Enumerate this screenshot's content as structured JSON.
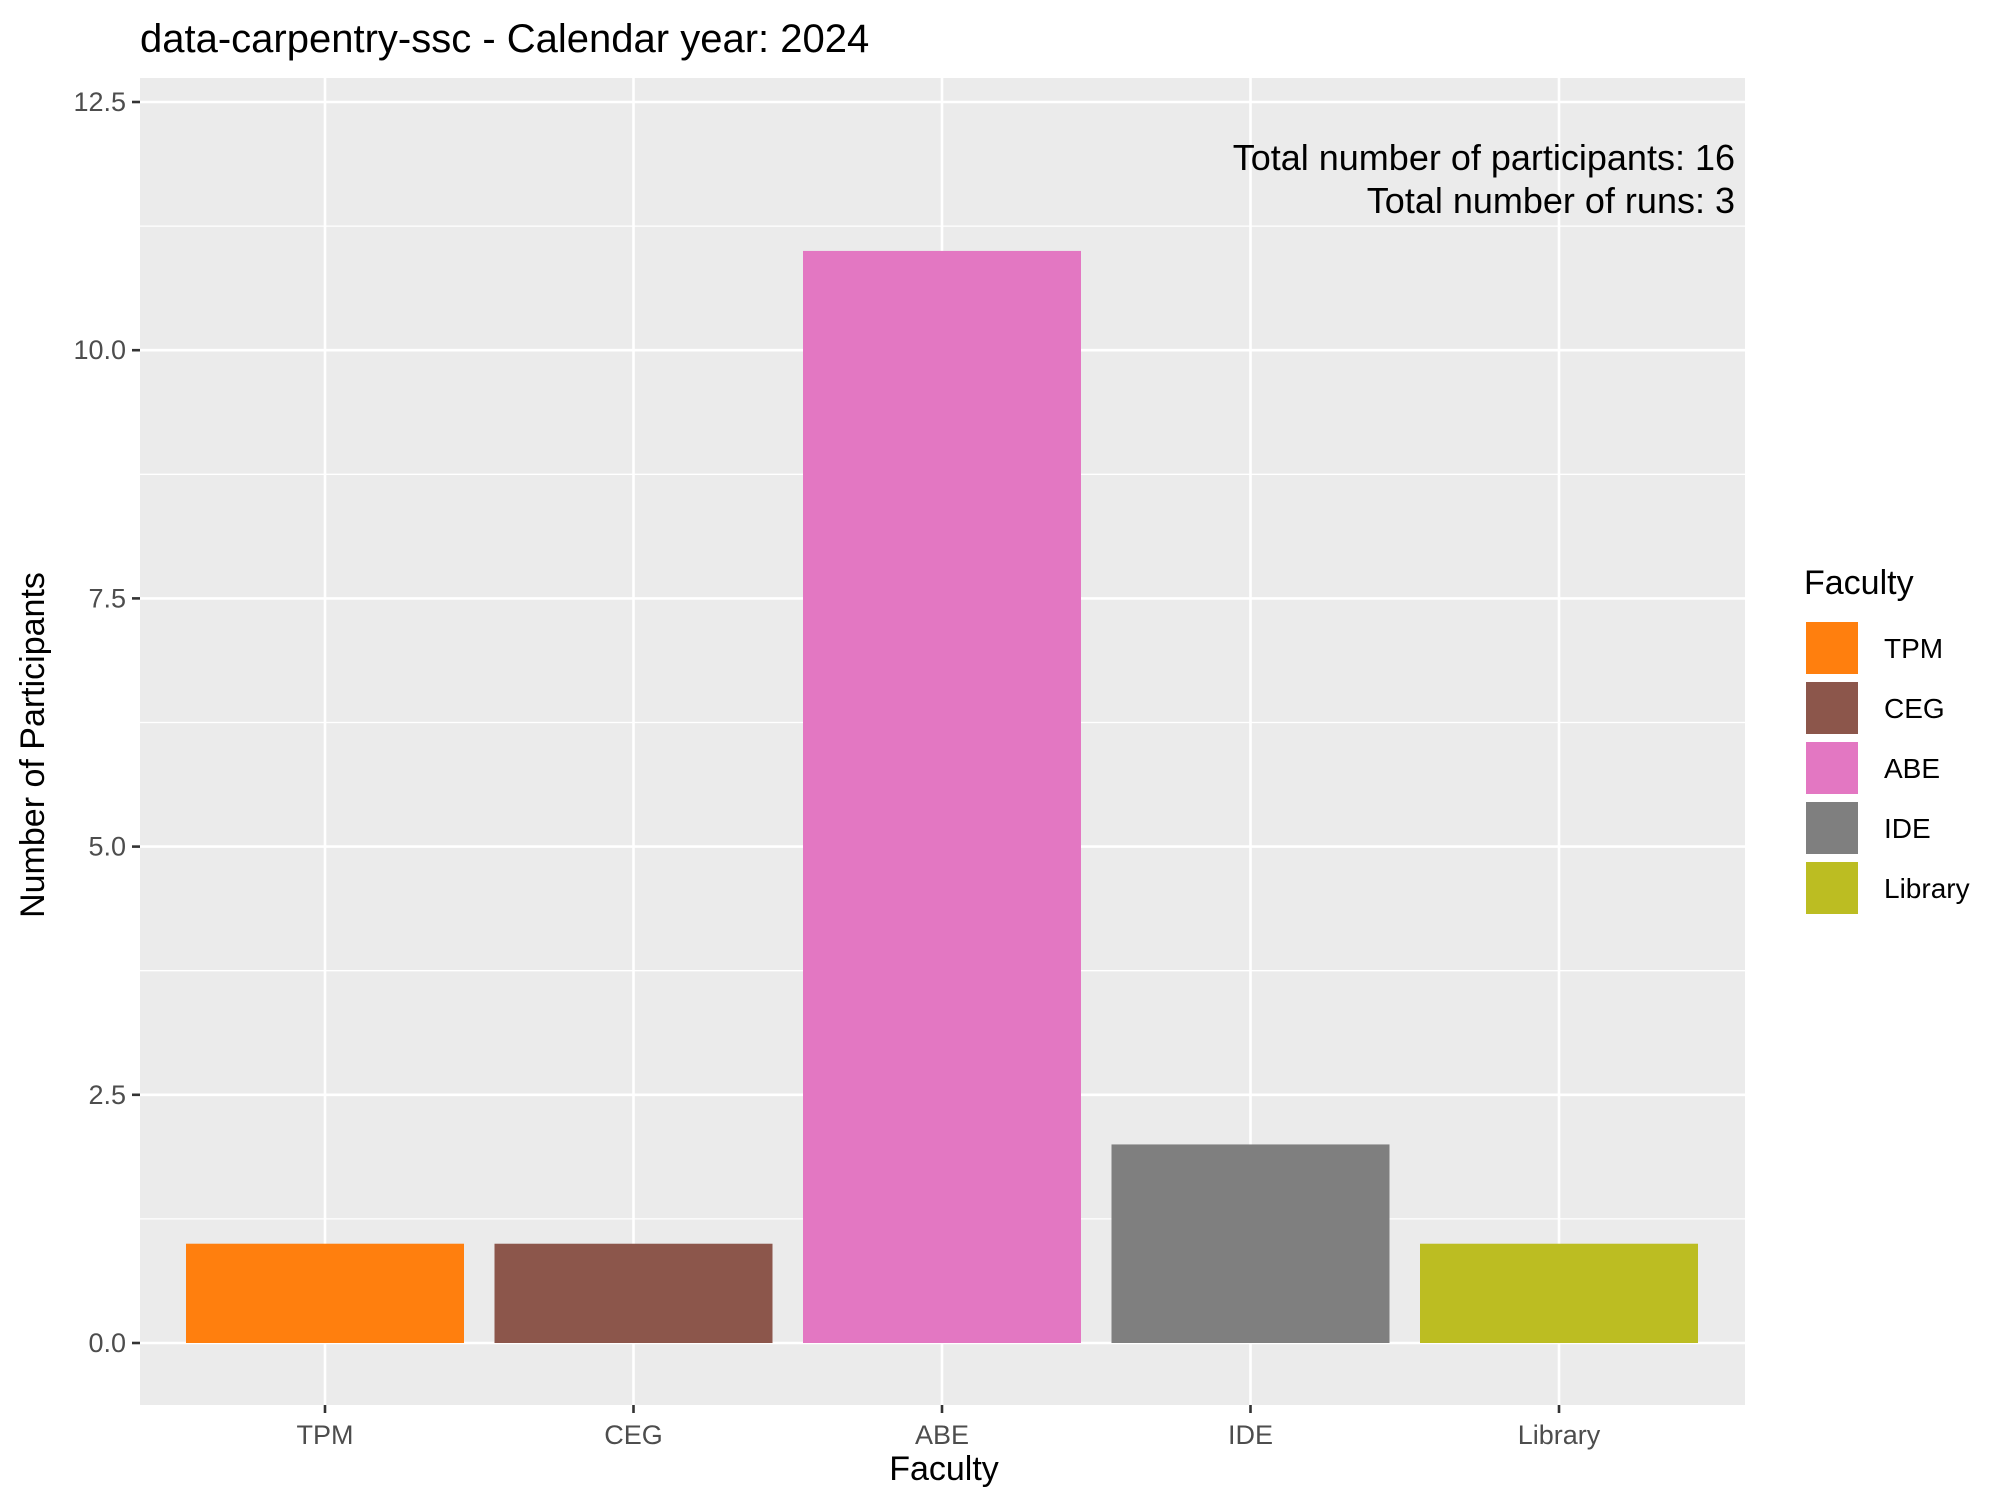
{
  "chart_data": {
    "type": "bar",
    "title": "data-carpentry-ssc - Calendar year: 2024",
    "xlabel": "Faculty",
    "ylabel": "Number of Participants",
    "categories": [
      "TPM",
      "CEG",
      "ABE",
      "IDE",
      "Library"
    ],
    "values": [
      1,
      1,
      11,
      2,
      1
    ],
    "colors": [
      "#ff7f0e",
      "#8c564b",
      "#e377c2",
      "#7f7f7f",
      "#bcbd22"
    ],
    "ylim": [
      0,
      12.5
    ],
    "yticks": [
      0,
      2.5,
      5,
      7.5,
      10,
      12.5
    ],
    "ytick_labels": [
      "0.0",
      "2.5",
      "5.0",
      "7.5",
      "10.0",
      "12.5"
    ],
    "grid": true,
    "panel_background": "#ebebeb",
    "legend": {
      "title": "Faculty",
      "position": "right",
      "entries": [
        "TPM",
        "CEG",
        "ABE",
        "IDE",
        "Library"
      ]
    },
    "annotations": [
      "Total number of participants: 16",
      "Total number of runs: 3"
    ]
  }
}
